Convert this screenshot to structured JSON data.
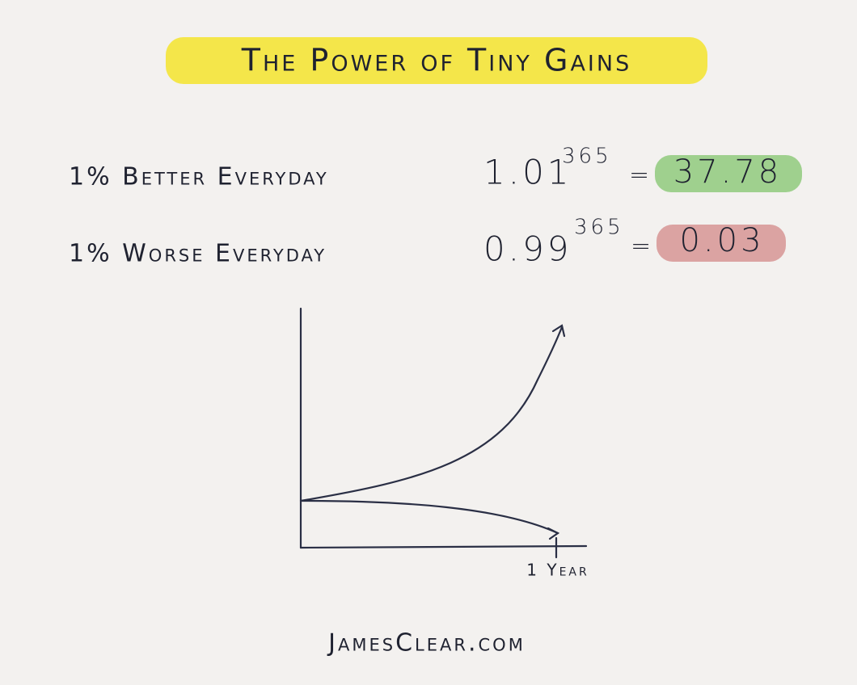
{
  "header": {
    "title": "The Power of Tiny Gains"
  },
  "rows": [
    {
      "label": "1% Better Everyday",
      "base": "1.01",
      "exponent": "365",
      "operator": "=",
      "result": "37.78"
    },
    {
      "label": "1% Worse Everyday",
      "base": "0.99",
      "exponent": "365",
      "operator": "=",
      "result": "0.03"
    }
  ],
  "sketch": {
    "x_label": "1 Year"
  },
  "footer": {
    "site": "JamesClear.com"
  }
}
